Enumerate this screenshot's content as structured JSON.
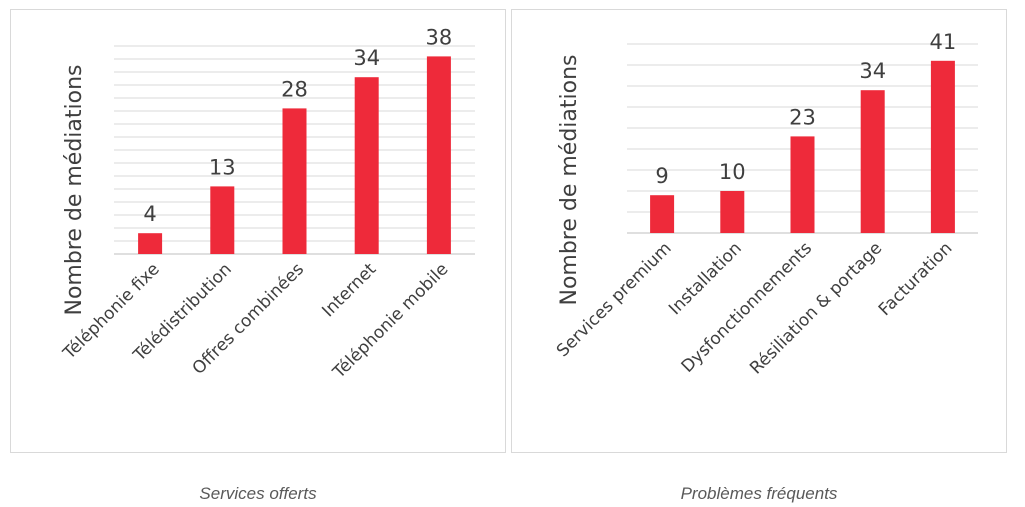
{
  "chart_data": [
    {
      "type": "bar",
      "categories": [
        "Téléphonie fixe",
        "Télédistribution",
        "Offres combinées",
        "Internet",
        "Téléphonie mobile"
      ],
      "values": [
        4,
        13,
        28,
        34,
        38
      ],
      "ylabel": "Nombre de médiations",
      "caption": "Services offerts",
      "bar_color": "#ee2a3a",
      "grid_color": "#d9d9d9",
      "grid": true,
      "ylim": [
        0,
        40
      ]
    },
    {
      "type": "bar",
      "categories": [
        "Services premium",
        "Installation",
        "Dysfonctionnements",
        "Résiliation & portage",
        "Facturation"
      ],
      "values": [
        9,
        10,
        23,
        34,
        41
      ],
      "ylabel": "Nombre de médiations",
      "caption": "Problèmes fréquents",
      "bar_color": "#ee2a3a",
      "grid_color": "#d9d9d9",
      "grid": true,
      "ylim": [
        0,
        45
      ]
    }
  ]
}
